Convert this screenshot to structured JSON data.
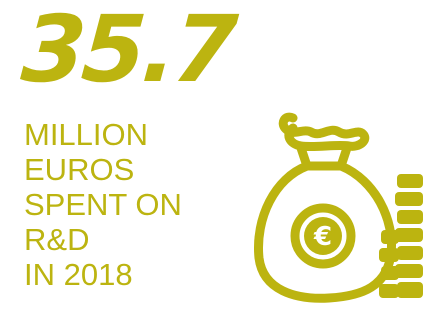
{
  "headline": {
    "value": "35.7"
  },
  "caption": {
    "lines": [
      "MILLION",
      "EUROS",
      "SPENT ON",
      "R&D",
      "IN 2018"
    ]
  },
  "icon": {
    "name": "money-bag-with-coins-icon",
    "symbol": "€",
    "color": "#bcb410"
  }
}
